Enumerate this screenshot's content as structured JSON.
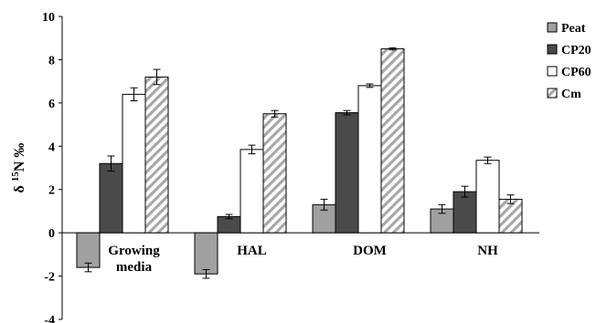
{
  "chart_data": {
    "type": "bar",
    "ylabel_main": "δ",
    "ylabel_sup": "15",
    "ylabel_rest": "N ‰",
    "xlabel": "",
    "ylim": [
      -4,
      10
    ],
    "yticks": [
      -4,
      -2,
      0,
      2,
      4,
      6,
      8,
      10
    ],
    "grid": false,
    "legend_position": "top-right",
    "categories": [
      {
        "lines": [
          "Growing",
          "media"
        ]
      },
      {
        "lines": [
          "HAL"
        ]
      },
      {
        "lines": [
          "DOM"
        ]
      },
      {
        "lines": [
          "NH"
        ]
      }
    ],
    "series": [
      {
        "name": "Peat",
        "color": "#a0a0a0",
        "pattern": "solid",
        "values": [
          -1.6,
          -1.9,
          1.3,
          1.1
        ],
        "errors": [
          0.2,
          0.2,
          0.25,
          0.2
        ]
      },
      {
        "name": "CP20",
        "color": "#4a4a4a",
        "pattern": "solid",
        "values": [
          3.2,
          0.75,
          5.55,
          1.9
        ],
        "errors": [
          0.35,
          0.1,
          0.1,
          0.25
        ]
      },
      {
        "name": "CP60",
        "color": "#ffffff",
        "pattern": "solid",
        "values": [
          6.4,
          3.85,
          6.8,
          3.35
        ],
        "errors": [
          0.3,
          0.2,
          0.08,
          0.15
        ]
      },
      {
        "name": "Cm",
        "color": "#ffffff",
        "pattern": "hatch",
        "values": [
          7.2,
          5.5,
          8.5,
          1.55
        ],
        "errors": [
          0.35,
          0.15,
          0.05,
          0.2
        ]
      }
    ]
  }
}
